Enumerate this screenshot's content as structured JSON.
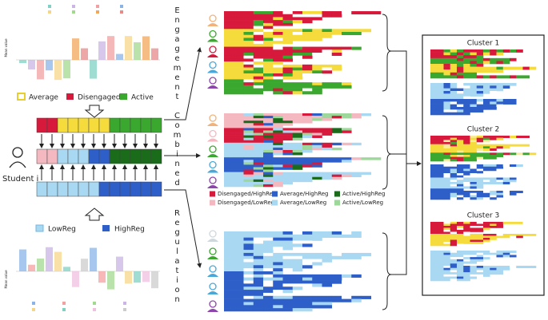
{
  "axis_label": "Mean value",
  "engagement_legend": [
    "Average",
    "Disengaged",
    "Active"
  ],
  "regulation_legend": [
    "LowReg",
    "HighReg"
  ],
  "side_labels": [
    "Engagement",
    "Combined",
    "Regulation"
  ],
  "student_label": "Student i",
  "combined_legend": [
    "Disengaged/HighReg",
    "Average/HighReg",
    "Active/HighReg",
    "Disengaged/LowReg",
    "Average/LowReg",
    "Active/LowReg"
  ],
  "clusters": [
    "Cluster 1",
    "Cluster 2",
    "Cluster 3"
  ]
}
